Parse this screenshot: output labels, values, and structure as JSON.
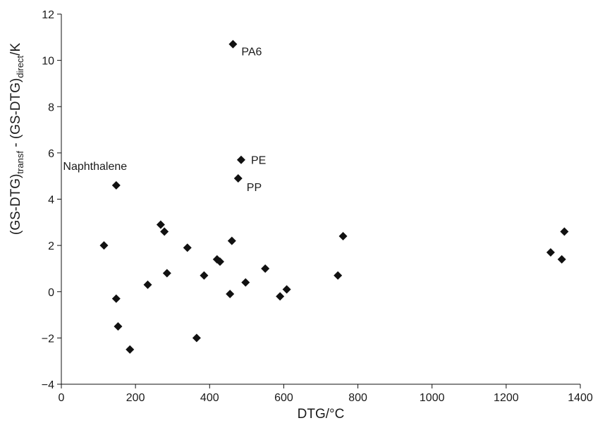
{
  "chart_data": {
    "type": "scatter",
    "title": "",
    "xlabel": "DTG/°C",
    "ylabel_parts": [
      "(GS-DTG)",
      "transf",
      " - (GS-DTG)",
      "direct",
      "/K"
    ],
    "xlim": [
      0,
      1400
    ],
    "ylim": [
      -4,
      12
    ],
    "x_ticks": [
      0,
      200,
      400,
      600,
      800,
      1000,
      1200,
      1400
    ],
    "y_ticks": [
      -4,
      -2,
      0,
      2,
      4,
      6,
      8,
      10,
      12
    ],
    "grid": false,
    "marker": "diamond",
    "marker_color": "#111111",
    "points": [
      {
        "x": 115,
        "y": 2.0
      },
      {
        "x": 148,
        "y": 4.6,
        "label": "Naphthalene"
      },
      {
        "x": 148,
        "y": -0.3
      },
      {
        "x": 153,
        "y": -1.5
      },
      {
        "x": 185,
        "y": -2.5
      },
      {
        "x": 233,
        "y": 0.3
      },
      {
        "x": 268,
        "y": 2.9
      },
      {
        "x": 278,
        "y": 2.6
      },
      {
        "x": 285,
        "y": 0.8
      },
      {
        "x": 340,
        "y": 1.9
      },
      {
        "x": 365,
        "y": -2.0
      },
      {
        "x": 385,
        "y": 0.7
      },
      {
        "x": 420,
        "y": 1.4
      },
      {
        "x": 428,
        "y": 1.3
      },
      {
        "x": 455,
        "y": -0.1
      },
      {
        "x": 460,
        "y": 2.2
      },
      {
        "x": 463,
        "y": 10.7,
        "label": "PA6"
      },
      {
        "x": 477,
        "y": 4.9,
        "label": "PP"
      },
      {
        "x": 485,
        "y": 5.7,
        "label": "PE"
      },
      {
        "x": 497,
        "y": 0.4
      },
      {
        "x": 550,
        "y": 1.0
      },
      {
        "x": 590,
        "y": -0.2
      },
      {
        "x": 608,
        "y": 0.1
      },
      {
        "x": 746,
        "y": 0.7
      },
      {
        "x": 760,
        "y": 2.4
      },
      {
        "x": 1320,
        "y": 1.7
      },
      {
        "x": 1350,
        "y": 1.4
      },
      {
        "x": 1357,
        "y": 2.6
      }
    ]
  }
}
